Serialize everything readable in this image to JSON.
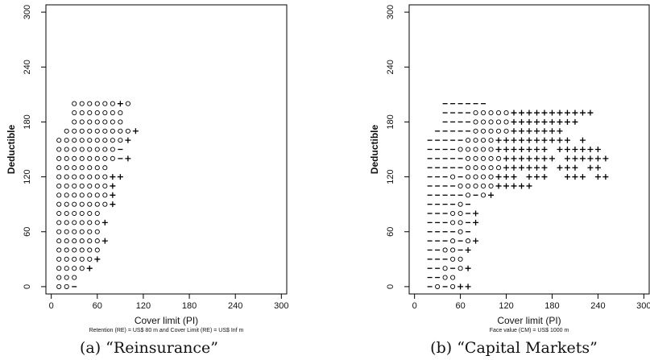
{
  "chart_data": [
    {
      "type": "scatter",
      "panel": "a",
      "caption": "(a) “Reinsurance”",
      "xlabel": "Cover limit (PI)",
      "ylabel": "Deductible",
      "subtitle": "Retention (RE) = US$ 80 m and Cover Limit (RE) = US$ Inf m",
      "xlim": [
        0,
        300
      ],
      "ylim": [
        0,
        300
      ],
      "xticks": [
        0,
        60,
        120,
        180,
        240,
        300
      ],
      "yticks": [
        0,
        60,
        120,
        180,
        240,
        300
      ],
      "grid": false,
      "legend": "none",
      "x_step": 10,
      "y_step": 10,
      "rows": [
        {
          "y": 0,
          "x0": 10,
          "marks": "oo-"
        },
        {
          "y": 10,
          "x0": 10,
          "marks": "ooo"
        },
        {
          "y": 20,
          "x0": 10,
          "marks": "oooo+"
        },
        {
          "y": 30,
          "x0": 10,
          "marks": "ooooo+"
        },
        {
          "y": 40,
          "x0": 10,
          "marks": "oooooo"
        },
        {
          "y": 50,
          "x0": 10,
          "marks": "oooooo+"
        },
        {
          "y": 60,
          "x0": 10,
          "marks": "oooooo"
        },
        {
          "y": 70,
          "x0": 10,
          "marks": "oooooo+"
        },
        {
          "y": 80,
          "x0": 10,
          "marks": "oooooo"
        },
        {
          "y": 90,
          "x0": 10,
          "marks": "ooooooo+"
        },
        {
          "y": 100,
          "x0": 10,
          "marks": "ooooooo+"
        },
        {
          "y": 110,
          "x0": 10,
          "marks": "ooooooo+"
        },
        {
          "y": 120,
          "x0": 10,
          "marks": "ooooooo++"
        },
        {
          "y": 130,
          "x0": 10,
          "marks": "ooooooo"
        },
        {
          "y": 140,
          "x0": 10,
          "marks": "oooooooo-+"
        },
        {
          "y": 150,
          "x0": 10,
          "marks": "oooooooo-"
        },
        {
          "y": 160,
          "x0": 10,
          "marks": "ooooooooo+"
        },
        {
          "y": 170,
          "x0": 20,
          "marks": "ooooooooo+"
        },
        {
          "y": 180,
          "x0": 30,
          "marks": "ooooooo"
        },
        {
          "y": 190,
          "x0": 30,
          "marks": "ooooooo"
        },
        {
          "y": 200,
          "x0": 30,
          "marks": "oooooo+o"
        }
      ]
    },
    {
      "type": "scatter",
      "panel": "b",
      "caption": "(b) “Capital Markets”",
      "xlabel": "Cover limit (PI)",
      "ylabel": "Deductible",
      "subtitle": "Face value (CM) = US$ 1000 m",
      "xlim": [
        0,
        300
      ],
      "ylim": [
        0,
        300
      ],
      "xticks": [
        0,
        60,
        120,
        180,
        240,
        300
      ],
      "yticks": [
        0,
        60,
        120,
        180,
        240,
        300
      ],
      "grid": false,
      "legend": "none",
      "x_step": 10,
      "y_step": 10,
      "rows": [
        {
          "y": 0,
          "x0": 20,
          "marks": "-o-o++"
        },
        {
          "y": 10,
          "x0": 20,
          "marks": "--oo"
        },
        {
          "y": 20,
          "x0": 20,
          "marks": "--o-o+"
        },
        {
          "y": 30,
          "x0": 20,
          "marks": "---oo"
        },
        {
          "y": 40,
          "x0": 20,
          "marks": "--oo-+"
        },
        {
          "y": 50,
          "x0": 20,
          "marks": "---o-o+"
        },
        {
          "y": 60,
          "x0": 20,
          "marks": "----o-"
        },
        {
          "y": 70,
          "x0": 20,
          "marks": "---oo-+"
        },
        {
          "y": 80,
          "x0": 20,
          "marks": "---oo-+"
        },
        {
          "y": 90,
          "x0": 20,
          "marks": "----o-"
        },
        {
          "y": 100,
          "x0": 20,
          "marks": "-----o-o+"
        },
        {
          "y": 110,
          "x0": 20,
          "marks": "----ooooo+++++"
        },
        {
          "y": 120,
          "x0": 20,
          "marks": "---o-oooo+++ +++  +++ ++"
        },
        {
          "y": 130,
          "x0": 20,
          "marks": "-----ooooo++++++ +++ ++"
        },
        {
          "y": 140,
          "x0": 20,
          "marks": "-----ooooo+++++++ ++++++"
        },
        {
          "y": 150,
          "x0": 20,
          "marks": "----ooooo+++++++ ++++++"
        },
        {
          "y": 160,
          "x0": 20,
          "marks": "-----oooo++++++++++ +"
        },
        {
          "y": 170,
          "x0": 30,
          "marks": "-----ooooo+++++++"
        },
        {
          "y": 180,
          "x0": 40,
          "marks": "----ooooo+++++++++"
        },
        {
          "y": 190,
          "x0": 40,
          "marks": "----ooooo+++++++++++"
        },
        {
          "y": 200,
          "x0": 40,
          "marks": "------"
        }
      ]
    }
  ]
}
